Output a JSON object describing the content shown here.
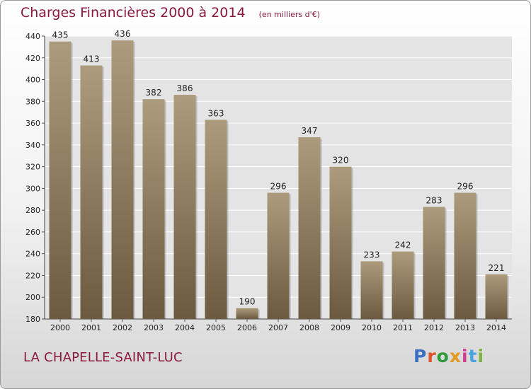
{
  "title": "Charges Financières 2000 à 2014",
  "subtitle": "(en milliers d'€)",
  "city": "LA CHAPELLE-SAINT-LUC",
  "logo": {
    "text": "Proxiti",
    "letter_colors": [
      "#3a6fc1",
      "#e0542b",
      "#2f9b3d",
      "#e39a1f",
      "#d23c8f",
      "#4aa3df",
      "#7cb342"
    ]
  },
  "colors": {
    "bar_top": "#ad9b7d",
    "bar_bottom": "#6b5a3f",
    "title": "#8a1a3c"
  },
  "chart_data": {
    "type": "bar",
    "categories": [
      "2000",
      "2001",
      "2002",
      "2003",
      "2004",
      "2005",
      "2006",
      "2007",
      "2008",
      "2009",
      "2010",
      "2011",
      "2012",
      "2013",
      "2014"
    ],
    "values": [
      435,
      413,
      436,
      382,
      386,
      363,
      190,
      296,
      347,
      320,
      233,
      242,
      283,
      296,
      221
    ],
    "ylim": [
      180,
      440
    ],
    "yticks": [
      180,
      200,
      220,
      240,
      260,
      280,
      300,
      320,
      340,
      360,
      380,
      400,
      420,
      440
    ],
    "grid": true,
    "title": "Charges Financières 2000 à 2014",
    "subtitle": "(en milliers d'€)"
  }
}
